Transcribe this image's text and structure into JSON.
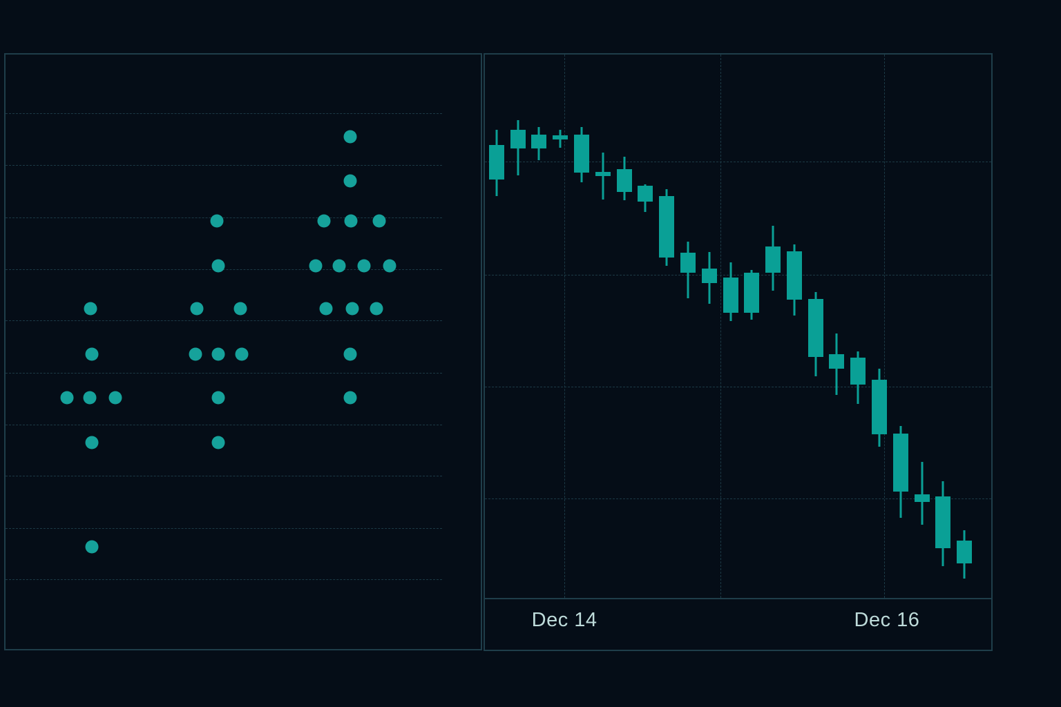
{
  "colors": {
    "background": "#050d17",
    "panel_border": "#1f3e4a",
    "gridline": "#1c3a46",
    "dot_accent": "#16a29b",
    "candle_accent": "#0aa096",
    "axis_label": "#bedbda"
  },
  "chart_data": [
    {
      "id": "distribution-dot-plot",
      "type": "scatter",
      "title": "",
      "xlabel": "",
      "ylabel": "",
      "grid": "on",
      "legend": "none",
      "axis_labels_visible": false,
      "gridline_span_pct": 91.9,
      "y_gridlines_pct": [
        9.9,
        18.6,
        27.4,
        36.1,
        44.7,
        53.5,
        62.2,
        70.9,
        79.7,
        88.3
      ],
      "clusters": [
        {
          "name": "cluster-1",
          "center_x_pct": 18.0,
          "count": 7
        },
        {
          "name": "cluster-2",
          "center_x_pct": 44.7,
          "count": 9
        },
        {
          "name": "cluster-3",
          "center_x_pct": 72.7,
          "count": 14
        }
      ],
      "points_pct": [
        [
          72.5,
          13.8
        ],
        [
          72.5,
          21.3
        ],
        [
          44.5,
          28.0
        ],
        [
          67.0,
          28.0
        ],
        [
          72.7,
          28.0
        ],
        [
          78.6,
          28.0
        ],
        [
          44.7,
          35.5
        ],
        [
          65.2,
          35.5
        ],
        [
          70.2,
          35.5
        ],
        [
          75.4,
          35.5
        ],
        [
          80.8,
          35.5
        ],
        [
          17.9,
          42.7
        ],
        [
          40.2,
          42.7
        ],
        [
          49.4,
          42.7
        ],
        [
          67.5,
          42.7
        ],
        [
          73.0,
          42.7
        ],
        [
          78.0,
          42.7
        ],
        [
          18.1,
          50.4
        ],
        [
          39.9,
          50.4
        ],
        [
          44.8,
          50.4
        ],
        [
          49.7,
          50.4
        ],
        [
          72.5,
          50.4
        ],
        [
          12.9,
          57.7
        ],
        [
          17.8,
          57.7
        ],
        [
          23.1,
          57.7
        ],
        [
          44.8,
          57.7
        ],
        [
          72.5,
          57.7
        ],
        [
          18.1,
          65.3
        ],
        [
          44.8,
          65.3
        ],
        [
          18.1,
          82.8
        ]
      ]
    },
    {
      "id": "price-candlestick",
      "type": "candlestick",
      "title": "",
      "xlabel": "",
      "ylabel": "",
      "grid": "on",
      "legend": "none",
      "y_axis_labels_visible": false,
      "y_scale_note": "normalized 0-100 of plot height, no price labels shown",
      "ylim": [
        0,
        100
      ],
      "x_start_pct": 2.3,
      "x_step_pct": 4.2,
      "v_gridlines_x_pct": [
        15.7,
        46.5,
        78.8
      ],
      "h_gridlines_y_pct": [
        19.7,
        40.5,
        61.1,
        81.7
      ],
      "x_axis": {
        "labels": [
          {
            "text": "Dec 14",
            "x_pct": 15.7
          },
          {
            "text": "Dec 16",
            "x_pct": 79.4
          }
        ]
      },
      "candles": [
        {
          "o": 77.0,
          "h": 86.1,
          "l": 74.0,
          "c": 83.4
        },
        {
          "o": 82.7,
          "h": 87.9,
          "l": 77.7,
          "c": 86.2
        },
        {
          "o": 85.3,
          "h": 86.6,
          "l": 80.5,
          "c": 82.7
        },
        {
          "o": 84.4,
          "h": 86.2,
          "l": 82.8,
          "c": 85.1
        },
        {
          "o": 85.3,
          "h": 86.6,
          "l": 76.5,
          "c": 78.3
        },
        {
          "o": 78.4,
          "h": 82.0,
          "l": 73.3,
          "c": 77.6
        },
        {
          "o": 78.9,
          "h": 81.2,
          "l": 73.2,
          "c": 74.7
        },
        {
          "o": 75.9,
          "h": 76.1,
          "l": 71.0,
          "c": 72.9
        },
        {
          "o": 74.0,
          "h": 75.2,
          "l": 61.1,
          "c": 62.7
        },
        {
          "o": 63.5,
          "h": 65.6,
          "l": 55.1,
          "c": 59.9
        },
        {
          "o": 60.6,
          "h": 63.6,
          "l": 54.1,
          "c": 58.0
        },
        {
          "o": 58.9,
          "h": 61.8,
          "l": 51.0,
          "c": 52.5
        },
        {
          "o": 52.5,
          "h": 60.4,
          "l": 51.2,
          "c": 59.8
        },
        {
          "o": 59.8,
          "h": 68.5,
          "l": 56.6,
          "c": 64.7
        },
        {
          "o": 63.8,
          "h": 65.1,
          "l": 52.0,
          "c": 54.9
        },
        {
          "o": 55.0,
          "h": 56.3,
          "l": 40.8,
          "c": 44.4
        },
        {
          "o": 44.8,
          "h": 48.7,
          "l": 37.4,
          "c": 42.2
        },
        {
          "o": 44.2,
          "h": 45.3,
          "l": 35.7,
          "c": 39.2
        },
        {
          "o": 40.1,
          "h": 42.2,
          "l": 27.8,
          "c": 30.1
        },
        {
          "o": 30.2,
          "h": 31.7,
          "l": 14.8,
          "c": 19.6
        },
        {
          "o": 19.1,
          "h": 25.0,
          "l": 13.5,
          "c": 17.7
        },
        {
          "o": 18.7,
          "h": 21.5,
          "l": 5.9,
          "c": 9.1
        },
        {
          "o": 10.6,
          "h": 12.5,
          "l": 3.5,
          "c": 6.4
        }
      ]
    }
  ]
}
